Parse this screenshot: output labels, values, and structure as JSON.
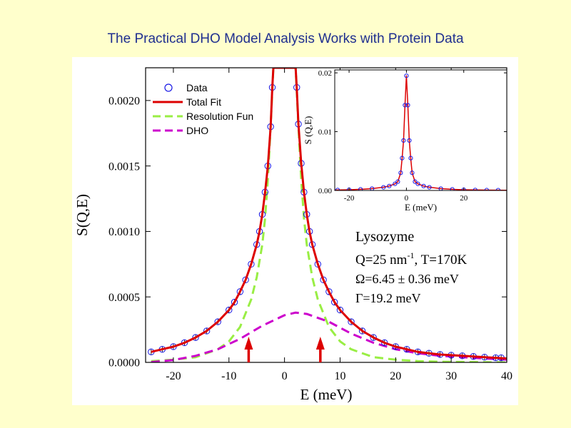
{
  "slide": {
    "title": "The Practical DHO Model Analysis Works with Protein Data"
  },
  "annotation": {
    "sample": "Lysozyme",
    "q_prefix": "Q=25 nm",
    "q_sup": "-1",
    "q_suffix": ", T=170K",
    "omega": "Ω=6.45 ± 0.36 meV",
    "gamma": "Γ=19.2 meV"
  },
  "colors": {
    "title": "#1f2f8f",
    "data": "#1a1ae6",
    "fit": "#dd0000",
    "resolution": "#99ee44",
    "dho": "#cc00cc",
    "arrow": "#dd0000",
    "background": "#ffffcc"
  },
  "chart_data": [
    {
      "type": "scatter",
      "role": "main",
      "title": "",
      "xlabel": "E (meV)",
      "ylabel": "S(Q,E)",
      "xlim": [
        -25,
        40
      ],
      "ylim": [
        0,
        0.00225
      ],
      "xticks": [
        -20,
        -10,
        0,
        10,
        20,
        30,
        40
      ],
      "xtick_labels": [
        "-20",
        "-10",
        "0",
        "10",
        "20",
        "30",
        "40"
      ],
      "yticks": [
        0,
        0.0005,
        0.001,
        0.0015,
        0.002
      ],
      "ytick_labels": [
        "0.0000",
        "0.0005",
        "0.0010",
        "0.0015",
        "0.0020"
      ],
      "grid": false,
      "legend_position": "top-left",
      "arrows_at_x": [
        -6.45,
        6.45
      ],
      "series": [
        {
          "name": "Data",
          "style": "markers",
          "x": [
            -24,
            -22,
            -20,
            -18,
            -16,
            -14,
            -12,
            -10,
            -9,
            -8,
            -7,
            -6,
            -5,
            -4.5,
            -4,
            -3.5,
            -3,
            -2.5,
            -2.2,
            2.2,
            2.5,
            3,
            3.5,
            4,
            4.5,
            5,
            6,
            7,
            8,
            9,
            10,
            12,
            14,
            16,
            18,
            20,
            22,
            24,
            26,
            28,
            30,
            32,
            34,
            36,
            38,
            39
          ],
          "y": [
            8e-05,
            0.0001,
            0.00012,
            0.00015,
            0.00019,
            0.00024,
            0.00031,
            0.0004,
            0.00046,
            0.00054,
            0.00063,
            0.00075,
            0.0009,
            0.001,
            0.00113,
            0.0013,
            0.0015,
            0.0018,
            0.0021,
            0.0021,
            0.00182,
            0.00152,
            0.0013,
            0.00113,
            0.001,
            0.0009,
            0.00075,
            0.00063,
            0.00054,
            0.00046,
            0.0004,
            0.00031,
            0.00024,
            0.00019,
            0.00015,
            0.00012,
            0.0001,
            8e-05,
            7e-05,
            6e-05,
            5.5e-05,
            5e-05,
            4.5e-05,
            4e-05,
            3.5e-05,
            3.5e-05
          ]
        },
        {
          "name": "Total Fit",
          "style": "line",
          "x": [
            -24,
            -22,
            -20,
            -18,
            -16,
            -14,
            -12,
            -10,
            -9,
            -8,
            -7,
            -6,
            -5,
            -4.5,
            -4,
            -3.5,
            -3,
            -2.5,
            -2.2,
            -2,
            2,
            2.2,
            2.5,
            3,
            3.5,
            4,
            4.5,
            5,
            6,
            7,
            8,
            9,
            10,
            12,
            14,
            16,
            18,
            20,
            22,
            24,
            26,
            28,
            30,
            32,
            34,
            36,
            38,
            40
          ],
          "y": [
            8e-05,
            0.0001,
            0.00012,
            0.00015,
            0.00019,
            0.00024,
            0.00031,
            0.0004,
            0.00046,
            0.00054,
            0.00063,
            0.00075,
            0.0009,
            0.001,
            0.00113,
            0.0013,
            0.0015,
            0.0018,
            0.0021,
            0.00225,
            0.00225,
            0.0021,
            0.00182,
            0.00152,
            0.0013,
            0.00113,
            0.001,
            0.0009,
            0.00075,
            0.00063,
            0.00054,
            0.00046,
            0.0004,
            0.00031,
            0.00024,
            0.00019,
            0.00015,
            0.00012,
            0.0001,
            8e-05,
            7e-05,
            6e-05,
            5.5e-05,
            5e-05,
            4.5e-05,
            4e-05,
            3.5e-05,
            3e-05
          ]
        },
        {
          "name": "Resolution Fun",
          "style": "dashed",
          "x": [
            -24,
            -20,
            -16,
            -12,
            -10,
            -8,
            -6,
            -5,
            -4,
            -3.5,
            -3,
            -2.5,
            -2,
            2,
            2.5,
            3,
            3.5,
            4,
            5,
            6,
            8,
            10,
            12,
            16,
            20,
            24,
            28,
            32,
            36,
            40
          ],
          "y": [
            1e-05,
            2e-05,
            4e-05,
            0.0001,
            0.00016,
            0.00027,
            0.00048,
            0.00065,
            0.0009,
            0.0011,
            0.0014,
            0.0018,
            0.00225,
            0.00225,
            0.0018,
            0.0014,
            0.0011,
            0.0009,
            0.00065,
            0.00048,
            0.00027,
            0.00016,
            0.0001,
            4e-05,
            2e-05,
            1e-05,
            5e-06,
            3e-06,
            1e-06,
            0
          ]
        },
        {
          "name": "DHO",
          "style": "dashed",
          "x": [
            -24,
            -20,
            -16,
            -12,
            -8,
            -4,
            0,
            2,
            4,
            8,
            12,
            16,
            20,
            24,
            28,
            32,
            36,
            40
          ],
          "y": [
            2e-06,
            1.8e-05,
            5e-05,
            0.0001,
            0.00018,
            0.00028,
            0.00036,
            0.00038,
            0.00037,
            0.00031,
            0.00022,
            0.00015,
            0.0001,
            7e-05,
            5e-05,
            4e-05,
            3e-05,
            2e-05
          ]
        }
      ]
    },
    {
      "type": "scatter",
      "role": "inset",
      "title": "",
      "xlabel": "E (meV)",
      "ylabel": "S (Q,E)",
      "xlim": [
        -25,
        35
      ],
      "ylim": [
        0,
        0.0205
      ],
      "xticks": [
        -20,
        0,
        20
      ],
      "xtick_labels": [
        "-20",
        "0",
        "20"
      ],
      "yticks": [
        0,
        0.01,
        0.02
      ],
      "ytick_labels": [
        "0.00",
        "0.01",
        "0.02"
      ],
      "series": [
        {
          "name": "Data",
          "style": "markers",
          "x": [
            -24,
            -20,
            -16,
            -12,
            -8,
            -6,
            -4,
            -3,
            -2,
            -1.5,
            -1,
            -0.5,
            0,
            0.5,
            1,
            1.5,
            2,
            3,
            4,
            6,
            8,
            12,
            16,
            20,
            24,
            28,
            32
          ],
          "y": [
            8e-05,
            0.00012,
            0.00019,
            0.00031,
            0.00054,
            0.00075,
            0.00113,
            0.0015,
            0.003,
            0.0055,
            0.0085,
            0.0145,
            0.0195,
            0.0145,
            0.0085,
            0.0055,
            0.003,
            0.0015,
            0.00113,
            0.00075,
            0.00054,
            0.00031,
            0.00019,
            0.00012,
            8e-05,
            6e-05,
            5e-05
          ]
        },
        {
          "name": "Total Fit",
          "style": "line",
          "x": [
            -25,
            -20,
            -16,
            -12,
            -8,
            -6,
            -4,
            -3,
            -2,
            -1.5,
            -1,
            -0.5,
            0,
            0.5,
            1,
            1.5,
            2,
            3,
            4,
            6,
            8,
            12,
            16,
            20,
            24,
            28,
            32,
            35
          ],
          "y": [
            7e-05,
            0.00012,
            0.00019,
            0.00031,
            0.00054,
            0.00075,
            0.00113,
            0.0015,
            0.003,
            0.0055,
            0.0085,
            0.0145,
            0.0195,
            0.0145,
            0.0085,
            0.0055,
            0.003,
            0.0015,
            0.00113,
            0.00075,
            0.00054,
            0.00031,
            0.00019,
            0.00012,
            8e-05,
            6e-05,
            5e-05,
            4e-05
          ]
        }
      ]
    }
  ]
}
